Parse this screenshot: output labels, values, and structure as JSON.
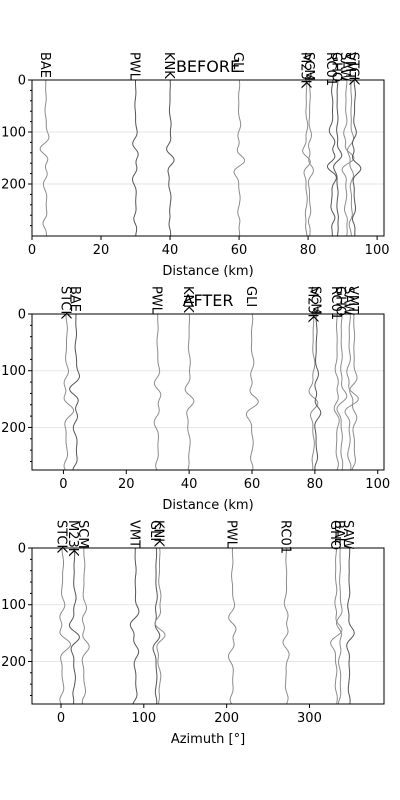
{
  "chart_data": [
    {
      "type": "line",
      "title": "BEFORE",
      "xlabel": "Distance (km)",
      "ylabel": "",
      "xlim": [
        0,
        102
      ],
      "ylim": [
        300,
        0
      ],
      "xticks": [
        0,
        20,
        40,
        60,
        80,
        100
      ],
      "yticks": [
        0,
        100,
        200
      ],
      "grid_y": true,
      "stations": [
        {
          "name": "BAE",
          "x": 4
        },
        {
          "name": "PWL",
          "x": 30
        },
        {
          "name": "KNK",
          "x": 40
        },
        {
          "name": "GLI",
          "x": 60
        },
        {
          "name": "M23K",
          "x": 79.5
        },
        {
          "name": "SCM",
          "x": 80.5
        },
        {
          "name": "RC01",
          "x": 87
        },
        {
          "name": "GHO",
          "x": 88.5
        },
        {
          "name": "SAW",
          "x": 91
        },
        {
          "name": "VMT",
          "x": 92.5
        },
        {
          "name": "STCK",
          "x": 93.5
        }
      ]
    },
    {
      "type": "line",
      "title": "AFTER",
      "xlabel": "Distance (km)",
      "ylabel": "",
      "xlim": [
        -10,
        102
      ],
      "ylim": [
        275,
        0
      ],
      "xticks": [
        0,
        20,
        40,
        60,
        80,
        100
      ],
      "yticks": [
        0,
        100,
        200
      ],
      "grid_y": true,
      "stations": [
        {
          "name": "STCK",
          "x": 1
        },
        {
          "name": "BAE",
          "x": 4
        },
        {
          "name": "PWL",
          "x": 30
        },
        {
          "name": "KNK",
          "x": 40
        },
        {
          "name": "GLI",
          "x": 60
        },
        {
          "name": "M23K",
          "x": 79.5
        },
        {
          "name": "SCM",
          "x": 80.5
        },
        {
          "name": "RC01",
          "x": 87
        },
        {
          "name": "GHO",
          "x": 88.5
        },
        {
          "name": "SAW",
          "x": 91
        },
        {
          "name": "VMT",
          "x": 92.5
        }
      ]
    },
    {
      "type": "line",
      "title": "",
      "xlabel": "Azimuth [°]",
      "ylabel": "",
      "xlim": [
        -35,
        390
      ],
      "ylim": [
        275,
        0
      ],
      "xticks": [
        0,
        100,
        200,
        300
      ],
      "yticks": [
        0,
        100,
        200
      ],
      "grid_y": true,
      "stations": [
        {
          "name": "STCK",
          "x": 2
        },
        {
          "name": "M23K",
          "x": 16
        },
        {
          "name": "SCM",
          "x": 28
        },
        {
          "name": "VMT",
          "x": 90
        },
        {
          "name": "GLI",
          "x": 115
        },
        {
          "name": "KNK",
          "x": 119
        },
        {
          "name": "PWL",
          "x": 207
        },
        {
          "name": "RC01",
          "x": 272
        },
        {
          "name": "GHO",
          "x": 332
        },
        {
          "name": "BAE",
          "x": 337
        },
        {
          "name": "SAW",
          "x": 348
        }
      ]
    }
  ]
}
